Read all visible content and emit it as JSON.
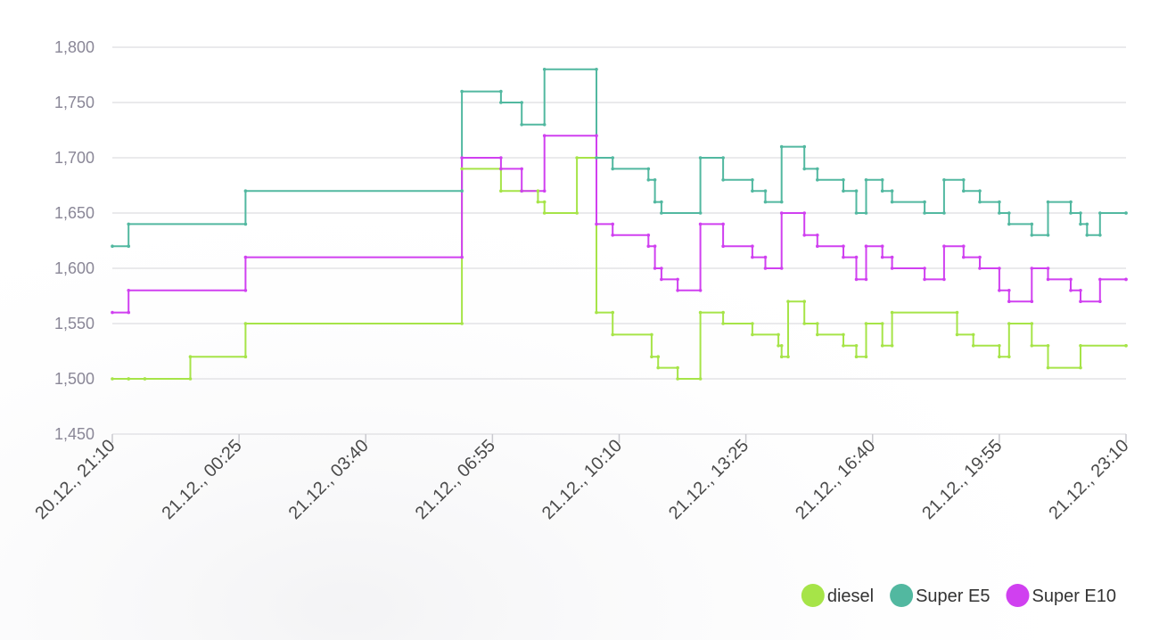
{
  "chart_data": {
    "type": "line",
    "step": true,
    "title": "",
    "xlabel": "",
    "ylabel": "",
    "ylim": [
      1.45,
      1.8
    ],
    "y_ticks": [
      1.45,
      1.5,
      1.55,
      1.6,
      1.65,
      1.7,
      1.75,
      1.8
    ],
    "y_tick_labels": [
      "1,450",
      "1,500",
      "1,550",
      "1,600",
      "1,650",
      "1,700",
      "1,750",
      "1,800"
    ],
    "x_range": [
      "2020-12-20T21:10",
      "2020-12-21T23:10"
    ],
    "x_ticks": [
      "2020-12-20T21:10",
      "2020-12-21T00:25",
      "2020-12-21T03:40",
      "2020-12-21T06:55",
      "2020-12-21T10:10",
      "2020-12-21T13:25",
      "2020-12-21T16:40",
      "2020-12-21T19:55",
      "2020-12-21T23:10"
    ],
    "x_tick_labels": [
      "20.12., 21:10",
      "21.12., 00:25",
      "21.12., 03:40",
      "21.12., 06:55",
      "21.12., 10:10",
      "21.12., 13:25",
      "21.12., 16:40",
      "21.12., 19:55",
      "21.12., 23:10"
    ],
    "grid": true,
    "legend_position": "bottom-right",
    "series": [
      {
        "name": "diesel",
        "color": "#a6e448",
        "points": [
          [
            "2020-12-20T21:10",
            1.5
          ],
          [
            "2020-12-20T21:35",
            1.5
          ],
          [
            "2020-12-20T22:00",
            1.5
          ],
          [
            "2020-12-20T23:10",
            1.52
          ],
          [
            "2020-12-21T00:35",
            1.55
          ],
          [
            "2020-12-21T06:08",
            1.69
          ],
          [
            "2020-12-21T07:08",
            1.67
          ],
          [
            "2020-12-21T07:40",
            1.67
          ],
          [
            "2020-12-21T08:05",
            1.66
          ],
          [
            "2020-12-21T08:15",
            1.65
          ],
          [
            "2020-12-21T09:05",
            1.7
          ],
          [
            "2020-12-21T09:35",
            1.56
          ],
          [
            "2020-12-21T10:00",
            1.54
          ],
          [
            "2020-12-21T11:00",
            1.52
          ],
          [
            "2020-12-21T11:10",
            1.51
          ],
          [
            "2020-12-21T11:40",
            1.5
          ],
          [
            "2020-12-21T12:15",
            1.56
          ],
          [
            "2020-12-21T12:50",
            1.55
          ],
          [
            "2020-12-21T13:35",
            1.54
          ],
          [
            "2020-12-21T14:15",
            1.53
          ],
          [
            "2020-12-21T14:20",
            1.52
          ],
          [
            "2020-12-21T14:30",
            1.57
          ],
          [
            "2020-12-21T14:55",
            1.55
          ],
          [
            "2020-12-21T15:15",
            1.54
          ],
          [
            "2020-12-21T15:55",
            1.53
          ],
          [
            "2020-12-21T16:15",
            1.52
          ],
          [
            "2020-12-21T16:30",
            1.55
          ],
          [
            "2020-12-21T16:55",
            1.53
          ],
          [
            "2020-12-21T17:10",
            1.56
          ],
          [
            "2020-12-21T18:50",
            1.54
          ],
          [
            "2020-12-21T19:15",
            1.53
          ],
          [
            "2020-12-21T19:55",
            1.52
          ],
          [
            "2020-12-21T20:10",
            1.55
          ],
          [
            "2020-12-21T20:45",
            1.53
          ],
          [
            "2020-12-21T21:10",
            1.51
          ],
          [
            "2020-12-21T22:00",
            1.53
          ],
          [
            "2020-12-21T23:10",
            1.53
          ]
        ]
      },
      {
        "name": "Super E5",
        "color": "#52b8a0",
        "points": [
          [
            "2020-12-20T21:10",
            1.62
          ],
          [
            "2020-12-20T21:35",
            1.64
          ],
          [
            "2020-12-21T00:35",
            1.67
          ],
          [
            "2020-12-21T06:08",
            1.76
          ],
          [
            "2020-12-21T07:08",
            1.75
          ],
          [
            "2020-12-21T07:40",
            1.73
          ],
          [
            "2020-12-21T08:15",
            1.78
          ],
          [
            "2020-12-21T09:35",
            1.7
          ],
          [
            "2020-12-21T10:00",
            1.69
          ],
          [
            "2020-12-21T10:55",
            1.68
          ],
          [
            "2020-12-21T11:05",
            1.66
          ],
          [
            "2020-12-21T11:15",
            1.65
          ],
          [
            "2020-12-21T12:15",
            1.7
          ],
          [
            "2020-12-21T12:50",
            1.68
          ],
          [
            "2020-12-21T13:35",
            1.67
          ],
          [
            "2020-12-21T13:55",
            1.66
          ],
          [
            "2020-12-21T14:20",
            1.71
          ],
          [
            "2020-12-21T14:55",
            1.69
          ],
          [
            "2020-12-21T15:15",
            1.68
          ],
          [
            "2020-12-21T15:55",
            1.67
          ],
          [
            "2020-12-21T16:15",
            1.65
          ],
          [
            "2020-12-21T16:30",
            1.68
          ],
          [
            "2020-12-21T16:55",
            1.67
          ],
          [
            "2020-12-21T17:10",
            1.66
          ],
          [
            "2020-12-21T18:00",
            1.65
          ],
          [
            "2020-12-21T18:30",
            1.68
          ],
          [
            "2020-12-21T19:00",
            1.67
          ],
          [
            "2020-12-21T19:25",
            1.66
          ],
          [
            "2020-12-21T19:55",
            1.65
          ],
          [
            "2020-12-21T20:10",
            1.64
          ],
          [
            "2020-12-21T20:45",
            1.63
          ],
          [
            "2020-12-21T21:10",
            1.66
          ],
          [
            "2020-12-21T21:45",
            1.65
          ],
          [
            "2020-12-21T22:00",
            1.64
          ],
          [
            "2020-12-21T22:10",
            1.63
          ],
          [
            "2020-12-21T22:30",
            1.65
          ],
          [
            "2020-12-21T23:10",
            1.65
          ]
        ]
      },
      {
        "name": "Super E10",
        "color": "#d040f0",
        "points": [
          [
            "2020-12-20T21:10",
            1.56
          ],
          [
            "2020-12-20T21:35",
            1.58
          ],
          [
            "2020-12-21T00:35",
            1.61
          ],
          [
            "2020-12-21T06:08",
            1.7
          ],
          [
            "2020-12-21T07:08",
            1.69
          ],
          [
            "2020-12-21T07:40",
            1.67
          ],
          [
            "2020-12-21T08:15",
            1.72
          ],
          [
            "2020-12-21T09:35",
            1.64
          ],
          [
            "2020-12-21T10:00",
            1.63
          ],
          [
            "2020-12-21T10:55",
            1.62
          ],
          [
            "2020-12-21T11:05",
            1.6
          ],
          [
            "2020-12-21T11:15",
            1.59
          ],
          [
            "2020-12-21T11:40",
            1.58
          ],
          [
            "2020-12-21T12:15",
            1.64
          ],
          [
            "2020-12-21T12:50",
            1.62
          ],
          [
            "2020-12-21T13:35",
            1.61
          ],
          [
            "2020-12-21T13:55",
            1.6
          ],
          [
            "2020-12-21T14:20",
            1.65
          ],
          [
            "2020-12-21T14:55",
            1.63
          ],
          [
            "2020-12-21T15:15",
            1.62
          ],
          [
            "2020-12-21T15:55",
            1.61
          ],
          [
            "2020-12-21T16:15",
            1.59
          ],
          [
            "2020-12-21T16:30",
            1.62
          ],
          [
            "2020-12-21T16:55",
            1.61
          ],
          [
            "2020-12-21T17:10",
            1.6
          ],
          [
            "2020-12-21T18:00",
            1.59
          ],
          [
            "2020-12-21T18:30",
            1.62
          ],
          [
            "2020-12-21T19:00",
            1.61
          ],
          [
            "2020-12-21T19:25",
            1.6
          ],
          [
            "2020-12-21T19:55",
            1.58
          ],
          [
            "2020-12-21T20:10",
            1.57
          ],
          [
            "2020-12-21T20:45",
            1.6
          ],
          [
            "2020-12-21T21:10",
            1.59
          ],
          [
            "2020-12-21T21:45",
            1.58
          ],
          [
            "2020-12-21T22:00",
            1.57
          ],
          [
            "2020-12-21T22:30",
            1.59
          ],
          [
            "2020-12-21T23:10",
            1.59
          ]
        ]
      }
    ]
  }
}
